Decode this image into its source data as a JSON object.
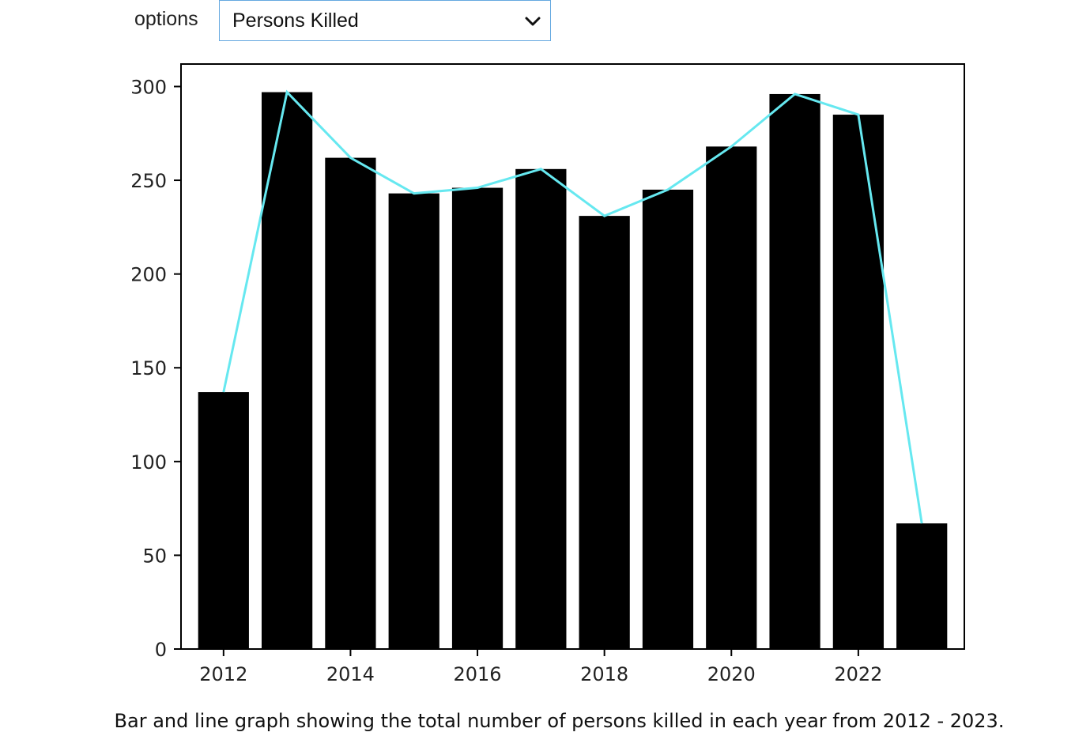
{
  "controls": {
    "dropdown_label": "options",
    "dropdown_selected": "Persons Killed",
    "chevron_icon": "chevron-down-icon"
  },
  "caption": "Bar and line graph showing the total number of persons killed in each year from 2012 - 2023.",
  "chart_data": {
    "type": "bar",
    "title": "",
    "xlabel": "",
    "ylabel": "",
    "categories": [
      "2012",
      "2013",
      "2014",
      "2015",
      "2016",
      "2017",
      "2018",
      "2019",
      "2020",
      "2021",
      "2022",
      "2023"
    ],
    "x": [
      2012,
      2013,
      2014,
      2015,
      2016,
      2017,
      2018,
      2019,
      2020,
      2021,
      2022,
      2023
    ],
    "series": [
      {
        "type": "bar",
        "color": "#000000",
        "values": [
          137,
          297,
          262,
          243,
          246,
          256,
          231,
          245,
          268,
          296,
          285,
          67
        ]
      },
      {
        "type": "line",
        "color": "#66e8f0",
        "values": [
          137,
          297,
          262,
          243,
          246,
          256,
          231,
          245,
          268,
          296,
          285,
          67
        ]
      }
    ],
    "xlim": [
      2011.33,
      2023.67
    ],
    "ylim": [
      0,
      312
    ],
    "xticks": [
      "2012",
      "2014",
      "2016",
      "2018",
      "2020",
      "2022"
    ],
    "yticks": [
      "0",
      "50",
      "100",
      "150",
      "200",
      "250",
      "300"
    ],
    "grid": false,
    "legend": "none"
  }
}
